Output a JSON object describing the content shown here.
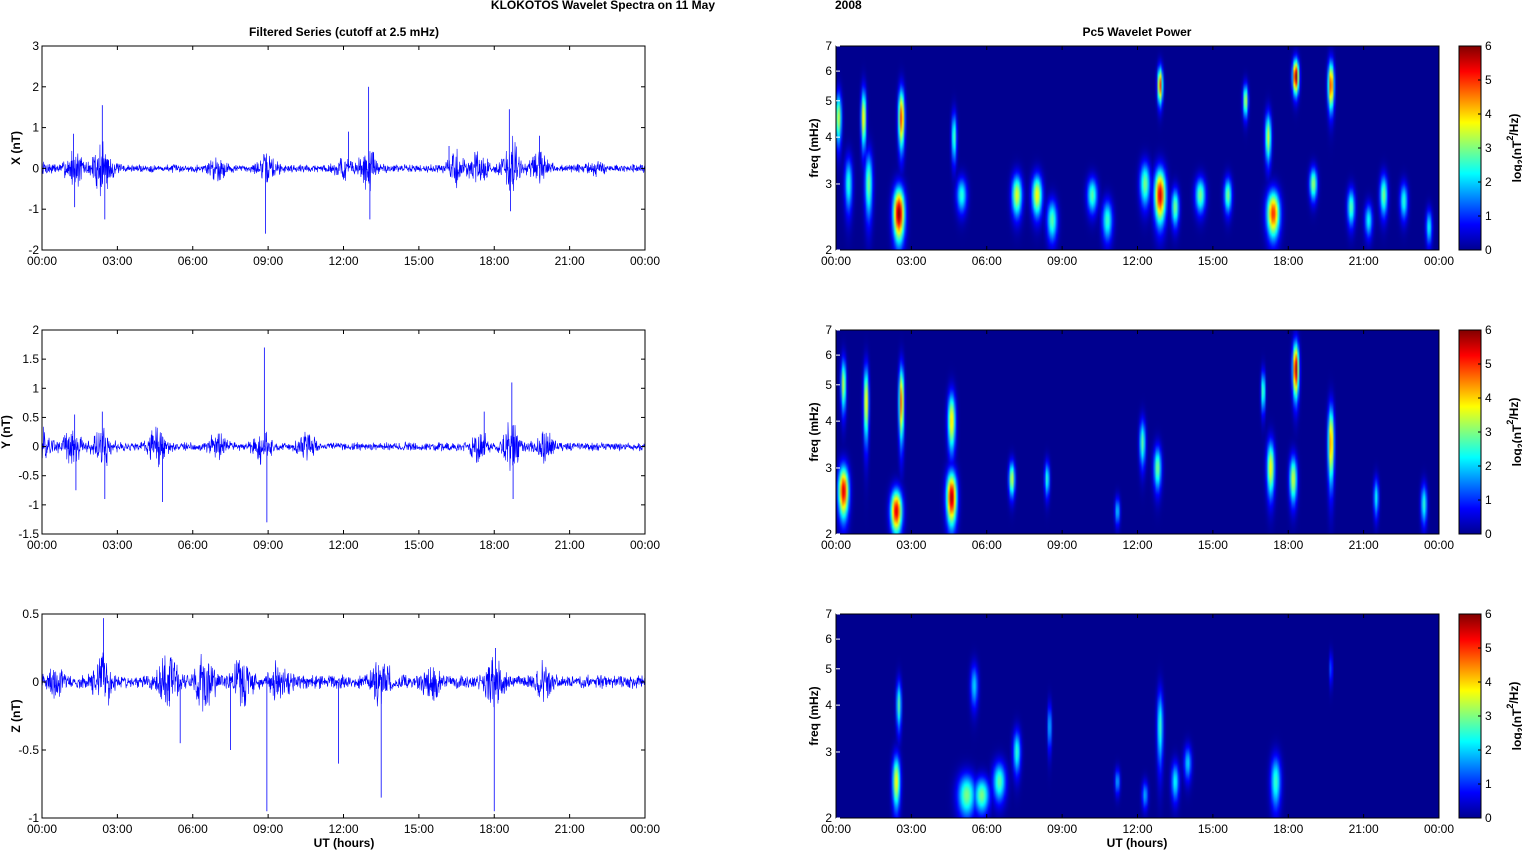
{
  "figure": {
    "title_main": "KLOKOTOS Wavelet Spectra on 11 May",
    "title_year": "2008",
    "left_title": "Filtered Series (cutoff at 2.5 mHz)",
    "right_title": "Pc5 Wavelet Power",
    "xlabel": "UT (hours)"
  },
  "colors": {
    "trace": "#0000ff",
    "spectrum_bg": "#00008f",
    "axes": "#000000"
  },
  "chart_data": [
    {
      "type": "line",
      "ylabel": "X (nT)",
      "xlim": [
        0,
        24
      ],
      "ylim": [
        -2,
        3
      ],
      "xticks": [
        "00:00",
        "03:00",
        "06:00",
        "09:00",
        "12:00",
        "15:00",
        "18:00",
        "21:00",
        "00:00"
      ],
      "yticks": [
        "-2",
        "-1",
        "0",
        "1",
        "2",
        "3"
      ],
      "ytick_values": [
        -2,
        -1,
        0,
        1,
        2,
        3
      ],
      "noise_base": 0.07,
      "activity": [
        [
          0.0,
          0.2
        ],
        [
          1.3,
          0.6
        ],
        [
          2.4,
          1.0
        ],
        [
          7.0,
          0.35
        ],
        [
          9.0,
          0.45
        ],
        [
          12.0,
          0.35
        ],
        [
          13.0,
          0.7
        ],
        [
          16.5,
          0.55
        ],
        [
          17.4,
          0.5
        ],
        [
          18.7,
          0.9
        ],
        [
          19.8,
          0.5
        ],
        [
          22.0,
          0.2
        ]
      ],
      "spikes": [
        [
          1.25,
          0.85
        ],
        [
          1.3,
          -0.95
        ],
        [
          2.4,
          1.55
        ],
        [
          2.5,
          -1.25
        ],
        [
          8.9,
          -1.6
        ],
        [
          12.2,
          0.9
        ],
        [
          13.0,
          2.0
        ],
        [
          13.05,
          -1.25
        ],
        [
          16.2,
          0.55
        ],
        [
          18.6,
          1.45
        ],
        [
          18.65,
          -1.05
        ],
        [
          19.8,
          0.8
        ]
      ]
    },
    {
      "type": "line",
      "ylabel": "Y (nT)",
      "xlim": [
        0,
        24
      ],
      "ylim": [
        -1.5,
        2
      ],
      "xticks": [
        "00:00",
        "03:00",
        "06:00",
        "09:00",
        "12:00",
        "15:00",
        "18:00",
        "21:00",
        "00:00"
      ],
      "yticks": [
        "-1.5",
        "-1",
        "-0.5",
        "0",
        "0.5",
        "1",
        "1.5",
        "2"
      ],
      "ytick_values": [
        -1.5,
        -1,
        -0.5,
        0,
        0.5,
        1,
        1.5,
        2
      ],
      "noise_base": 0.05,
      "activity": [
        [
          0.1,
          0.35
        ],
        [
          1.2,
          0.45
        ],
        [
          2.4,
          0.5
        ],
        [
          4.6,
          0.45
        ],
        [
          7.0,
          0.3
        ],
        [
          8.8,
          0.4
        ],
        [
          10.5,
          0.3
        ],
        [
          17.4,
          0.35
        ],
        [
          18.7,
          0.65
        ],
        [
          20.0,
          0.3
        ]
      ],
      "spikes": [
        [
          1.3,
          0.55
        ],
        [
          1.35,
          -0.75
        ],
        [
          2.4,
          0.6
        ],
        [
          2.5,
          -0.9
        ],
        [
          4.8,
          -0.95
        ],
        [
          8.85,
          1.7
        ],
        [
          8.95,
          -1.3
        ],
        [
          17.6,
          0.6
        ],
        [
          18.7,
          1.1
        ],
        [
          18.75,
          -0.9
        ]
      ]
    },
    {
      "type": "line",
      "ylabel": "Z (nT)",
      "xlim": [
        0,
        24
      ],
      "ylim": [
        -1,
        0.5
      ],
      "xticks": [
        "00:00",
        "03:00",
        "06:00",
        "09:00",
        "12:00",
        "15:00",
        "18:00",
        "21:00",
        "00:00"
      ],
      "yticks": [
        "-1",
        "-0.5",
        "0",
        "0.5"
      ],
      "ytick_values": [
        -1,
        -0.5,
        0,
        0.5
      ],
      "noise_base": 0.035,
      "activity": [
        [
          0.5,
          0.12
        ],
        [
          2.4,
          0.25
        ],
        [
          5.0,
          0.3
        ],
        [
          6.5,
          0.3
        ],
        [
          8.0,
          0.25
        ],
        [
          9.5,
          0.2
        ],
        [
          13.5,
          0.25
        ],
        [
          15.5,
          0.15
        ],
        [
          18.0,
          0.2
        ],
        [
          20.0,
          0.15
        ]
      ],
      "spikes": [
        [
          2.45,
          0.47
        ],
        [
          5.5,
          -0.45
        ],
        [
          7.5,
          -0.5
        ],
        [
          8.95,
          -0.95
        ],
        [
          11.8,
          -0.6
        ],
        [
          13.5,
          -0.85
        ],
        [
          18.0,
          -0.95
        ],
        [
          18.05,
          0.25
        ]
      ]
    },
    {
      "type": "heatmap",
      "ylabel": "freq (mHz)",
      "yscale": "log",
      "xlim": [
        0,
        24
      ],
      "ylim": [
        2,
        7
      ],
      "clim": [
        0,
        6
      ],
      "colorbar_label": "log",
      "colorbar_sub": "2",
      "colorbar_unit_open": "(nT",
      "colorbar_unit_exp": "2",
      "colorbar_unit_close": "/Hz)",
      "colorbar_ticks": [
        "0",
        "1",
        "2",
        "3",
        "4",
        "5",
        "6"
      ],
      "xticks": [
        "00:00",
        "03:00",
        "06:00",
        "09:00",
        "12:00",
        "15:00",
        "18:00",
        "21:00",
        "00:00"
      ],
      "yticks": [
        "2",
        "3",
        "4",
        "5",
        "6",
        "7"
      ],
      "ytick_values": [
        2,
        3,
        4,
        5,
        6,
        7
      ],
      "blobs": [
        [
          0.1,
          4.5,
          0.12,
          0.7,
          3.5
        ],
        [
          0.5,
          3.0,
          0.15,
          0.5,
          2.5
        ],
        [
          1.1,
          4.5,
          0.1,
          0.8,
          4.0
        ],
        [
          1.3,
          3.0,
          0.15,
          0.6,
          3.0
        ],
        [
          2.5,
          2.5,
          0.22,
          0.4,
          6.0
        ],
        [
          2.6,
          4.5,
          0.12,
          0.8,
          5.0
        ],
        [
          4.7,
          4.0,
          0.1,
          0.6,
          2.8
        ],
        [
          5.0,
          2.8,
          0.2,
          0.3,
          2.5
        ],
        [
          7.2,
          2.8,
          0.2,
          0.35,
          3.6
        ],
        [
          8.0,
          2.8,
          0.2,
          0.35,
          3.8
        ],
        [
          8.6,
          2.4,
          0.2,
          0.3,
          2.8
        ],
        [
          10.2,
          2.8,
          0.2,
          0.3,
          2.8
        ],
        [
          10.8,
          2.4,
          0.2,
          0.3,
          2.6
        ],
        [
          12.3,
          3.0,
          0.2,
          0.4,
          3.0
        ],
        [
          12.9,
          2.8,
          0.22,
          0.45,
          5.5
        ],
        [
          12.9,
          5.5,
          0.1,
          0.6,
          5.0
        ],
        [
          13.5,
          2.6,
          0.15,
          0.3,
          3.0
        ],
        [
          14.5,
          2.8,
          0.2,
          0.3,
          3.0
        ],
        [
          15.6,
          2.8,
          0.15,
          0.3,
          3.0
        ],
        [
          16.3,
          5.0,
          0.1,
          0.5,
          3.5
        ],
        [
          17.4,
          2.5,
          0.25,
          0.35,
          5.0
        ],
        [
          17.2,
          4.0,
          0.12,
          0.6,
          3.5
        ],
        [
          18.3,
          5.8,
          0.12,
          0.6,
          6.0
        ],
        [
          19.7,
          5.5,
          0.12,
          0.8,
          5.0
        ],
        [
          20.5,
          2.6,
          0.15,
          0.3,
          2.8
        ],
        [
          21.8,
          2.8,
          0.15,
          0.35,
          3.0
        ],
        [
          22.6,
          2.7,
          0.15,
          0.3,
          2.5
        ],
        [
          23.6,
          2.3,
          0.12,
          0.25,
          2.3
        ],
        [
          21.2,
          2.4,
          0.15,
          0.25,
          2.3
        ],
        [
          19.0,
          3.0,
          0.15,
          0.3,
          3.2
        ]
      ]
    },
    {
      "type": "heatmap",
      "ylabel": "freq (mHz)",
      "yscale": "log",
      "xlim": [
        0,
        24
      ],
      "ylim": [
        2,
        7
      ],
      "clim": [
        0,
        6
      ],
      "colorbar_label": "log",
      "colorbar_sub": "2",
      "colorbar_unit_open": "(nT",
      "colorbar_unit_exp": "2",
      "colorbar_unit_close": "/Hz)",
      "colorbar_ticks": [
        "0",
        "1",
        "2",
        "3",
        "4",
        "5",
        "6"
      ],
      "xticks": [
        "00:00",
        "03:00",
        "06:00",
        "09:00",
        "12:00",
        "15:00",
        "18:00",
        "21:00",
        "00:00"
      ],
      "yticks": [
        "2",
        "3",
        "4",
        "5",
        "6",
        "7"
      ],
      "ytick_values": [
        2,
        3,
        4,
        5,
        6,
        7
      ],
      "blobs": [
        [
          0.3,
          2.6,
          0.2,
          0.4,
          5.5
        ],
        [
          0.3,
          5.0,
          0.1,
          0.8,
          3.5
        ],
        [
          1.2,
          4.5,
          0.1,
          1.0,
          4.0
        ],
        [
          2.4,
          2.3,
          0.22,
          0.3,
          5.5
        ],
        [
          2.6,
          4.5,
          0.1,
          1.0,
          4.8
        ],
        [
          4.6,
          2.5,
          0.2,
          0.4,
          5.8
        ],
        [
          4.6,
          4.0,
          0.15,
          0.7,
          4.0
        ],
        [
          7.0,
          2.8,
          0.12,
          0.3,
          3.5
        ],
        [
          8.4,
          2.8,
          0.1,
          0.3,
          2.5
        ],
        [
          11.2,
          2.3,
          0.1,
          0.2,
          2.0
        ],
        [
          12.2,
          3.5,
          0.12,
          0.5,
          2.8
        ],
        [
          12.8,
          3.0,
          0.15,
          0.4,
          3.0
        ],
        [
          17.3,
          3.0,
          0.15,
          0.5,
          3.8
        ],
        [
          18.3,
          5.5,
          0.12,
          0.9,
          5.8
        ],
        [
          18.2,
          2.8,
          0.15,
          0.4,
          3.5
        ],
        [
          19.7,
          3.5,
          0.12,
          0.8,
          4.5
        ],
        [
          21.5,
          2.5,
          0.1,
          0.3,
          2.3
        ],
        [
          23.4,
          2.4,
          0.12,
          0.3,
          2.5
        ],
        [
          17.0,
          4.8,
          0.08,
          0.6,
          3.0
        ]
      ]
    },
    {
      "type": "heatmap",
      "ylabel": "freq (mHz)",
      "yscale": "log",
      "xlim": [
        0,
        24
      ],
      "ylim": [
        2,
        7
      ],
      "clim": [
        0,
        6
      ],
      "colorbar_label": "log",
      "colorbar_sub": "2",
      "colorbar_unit_open": "(nT",
      "colorbar_unit_exp": "2",
      "colorbar_unit_close": "/Hz)",
      "colorbar_ticks": [
        "0",
        "1",
        "2",
        "3",
        "4",
        "5",
        "6"
      ],
      "xticks": [
        "00:00",
        "03:00",
        "06:00",
        "09:00",
        "12:00",
        "15:00",
        "18:00",
        "21:00",
        "00:00"
      ],
      "yticks": [
        "2",
        "3",
        "4",
        "5",
        "6",
        "7"
      ],
      "ytick_values": [
        2,
        3,
        4,
        5,
        6,
        7
      ],
      "blobs": [
        [
          2.4,
          2.5,
          0.15,
          0.4,
          3.8
        ],
        [
          2.5,
          4.0,
          0.1,
          0.6,
          2.8
        ],
        [
          5.2,
          2.3,
          0.35,
          0.3,
          3.0
        ],
        [
          5.8,
          2.3,
          0.3,
          0.25,
          3.0
        ],
        [
          6.5,
          2.5,
          0.25,
          0.3,
          2.8
        ],
        [
          5.5,
          4.5,
          0.15,
          0.6,
          2.0
        ],
        [
          7.2,
          3.0,
          0.15,
          0.4,
          2.5
        ],
        [
          8.5,
          3.5,
          0.08,
          0.5,
          2.0
        ],
        [
          11.2,
          2.5,
          0.1,
          0.2,
          1.8
        ],
        [
          12.9,
          3.5,
          0.12,
          0.8,
          2.6
        ],
        [
          13.5,
          2.5,
          0.15,
          0.3,
          2.3
        ],
        [
          14.0,
          2.8,
          0.15,
          0.3,
          2.0
        ],
        [
          17.5,
          2.5,
          0.2,
          0.4,
          2.6
        ],
        [
          19.7,
          5.0,
          0.06,
          0.5,
          1.5
        ],
        [
          12.3,
          2.3,
          0.12,
          0.2,
          1.8
        ]
      ]
    }
  ]
}
